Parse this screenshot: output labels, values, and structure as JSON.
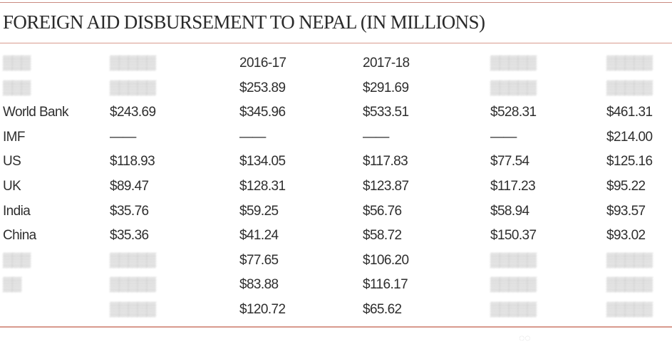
{
  "title": "FOREIGN AID DISBURSEMENT TO NEPAL (IN MILLIONS)",
  "rows": [
    [
      "",
      "",
      "2016-17",
      "2017-18",
      "",
      ""
    ],
    [
      "",
      "",
      "$253.89",
      "$291.69",
      "",
      ""
    ],
    [
      "World Bank",
      "$243.69",
      "$345.96",
      "$533.51",
      "$528.31",
      "$461.31"
    ],
    [
      "IMF",
      "——",
      "——",
      "——",
      "——",
      "$214.00"
    ],
    [
      "US",
      "$118.93",
      "$134.05",
      "$117.83",
      "$77.54",
      "$125.16"
    ],
    [
      "UK",
      "$89.47",
      "$128.31",
      "$123.87",
      "$117.23",
      "$95.22"
    ],
    [
      "India",
      "$35.76",
      "$59.25",
      "$56.76",
      "$58.94",
      "$93.57"
    ],
    [
      "China",
      "$35.36",
      "$41.24",
      "$58.72",
      "$150.37",
      "$93.02"
    ],
    [
      "",
      "",
      "$77.65",
      "$106.20",
      "",
      ""
    ],
    [
      "",
      "",
      "$83.88",
      "$116.17",
      "",
      ""
    ],
    [
      "",
      "",
      "$120.72",
      "$65.62",
      "",
      ""
    ]
  ],
  "blurred_cells_note": "",
  "watermark_icon": "wechat-like-watermark-icon"
}
